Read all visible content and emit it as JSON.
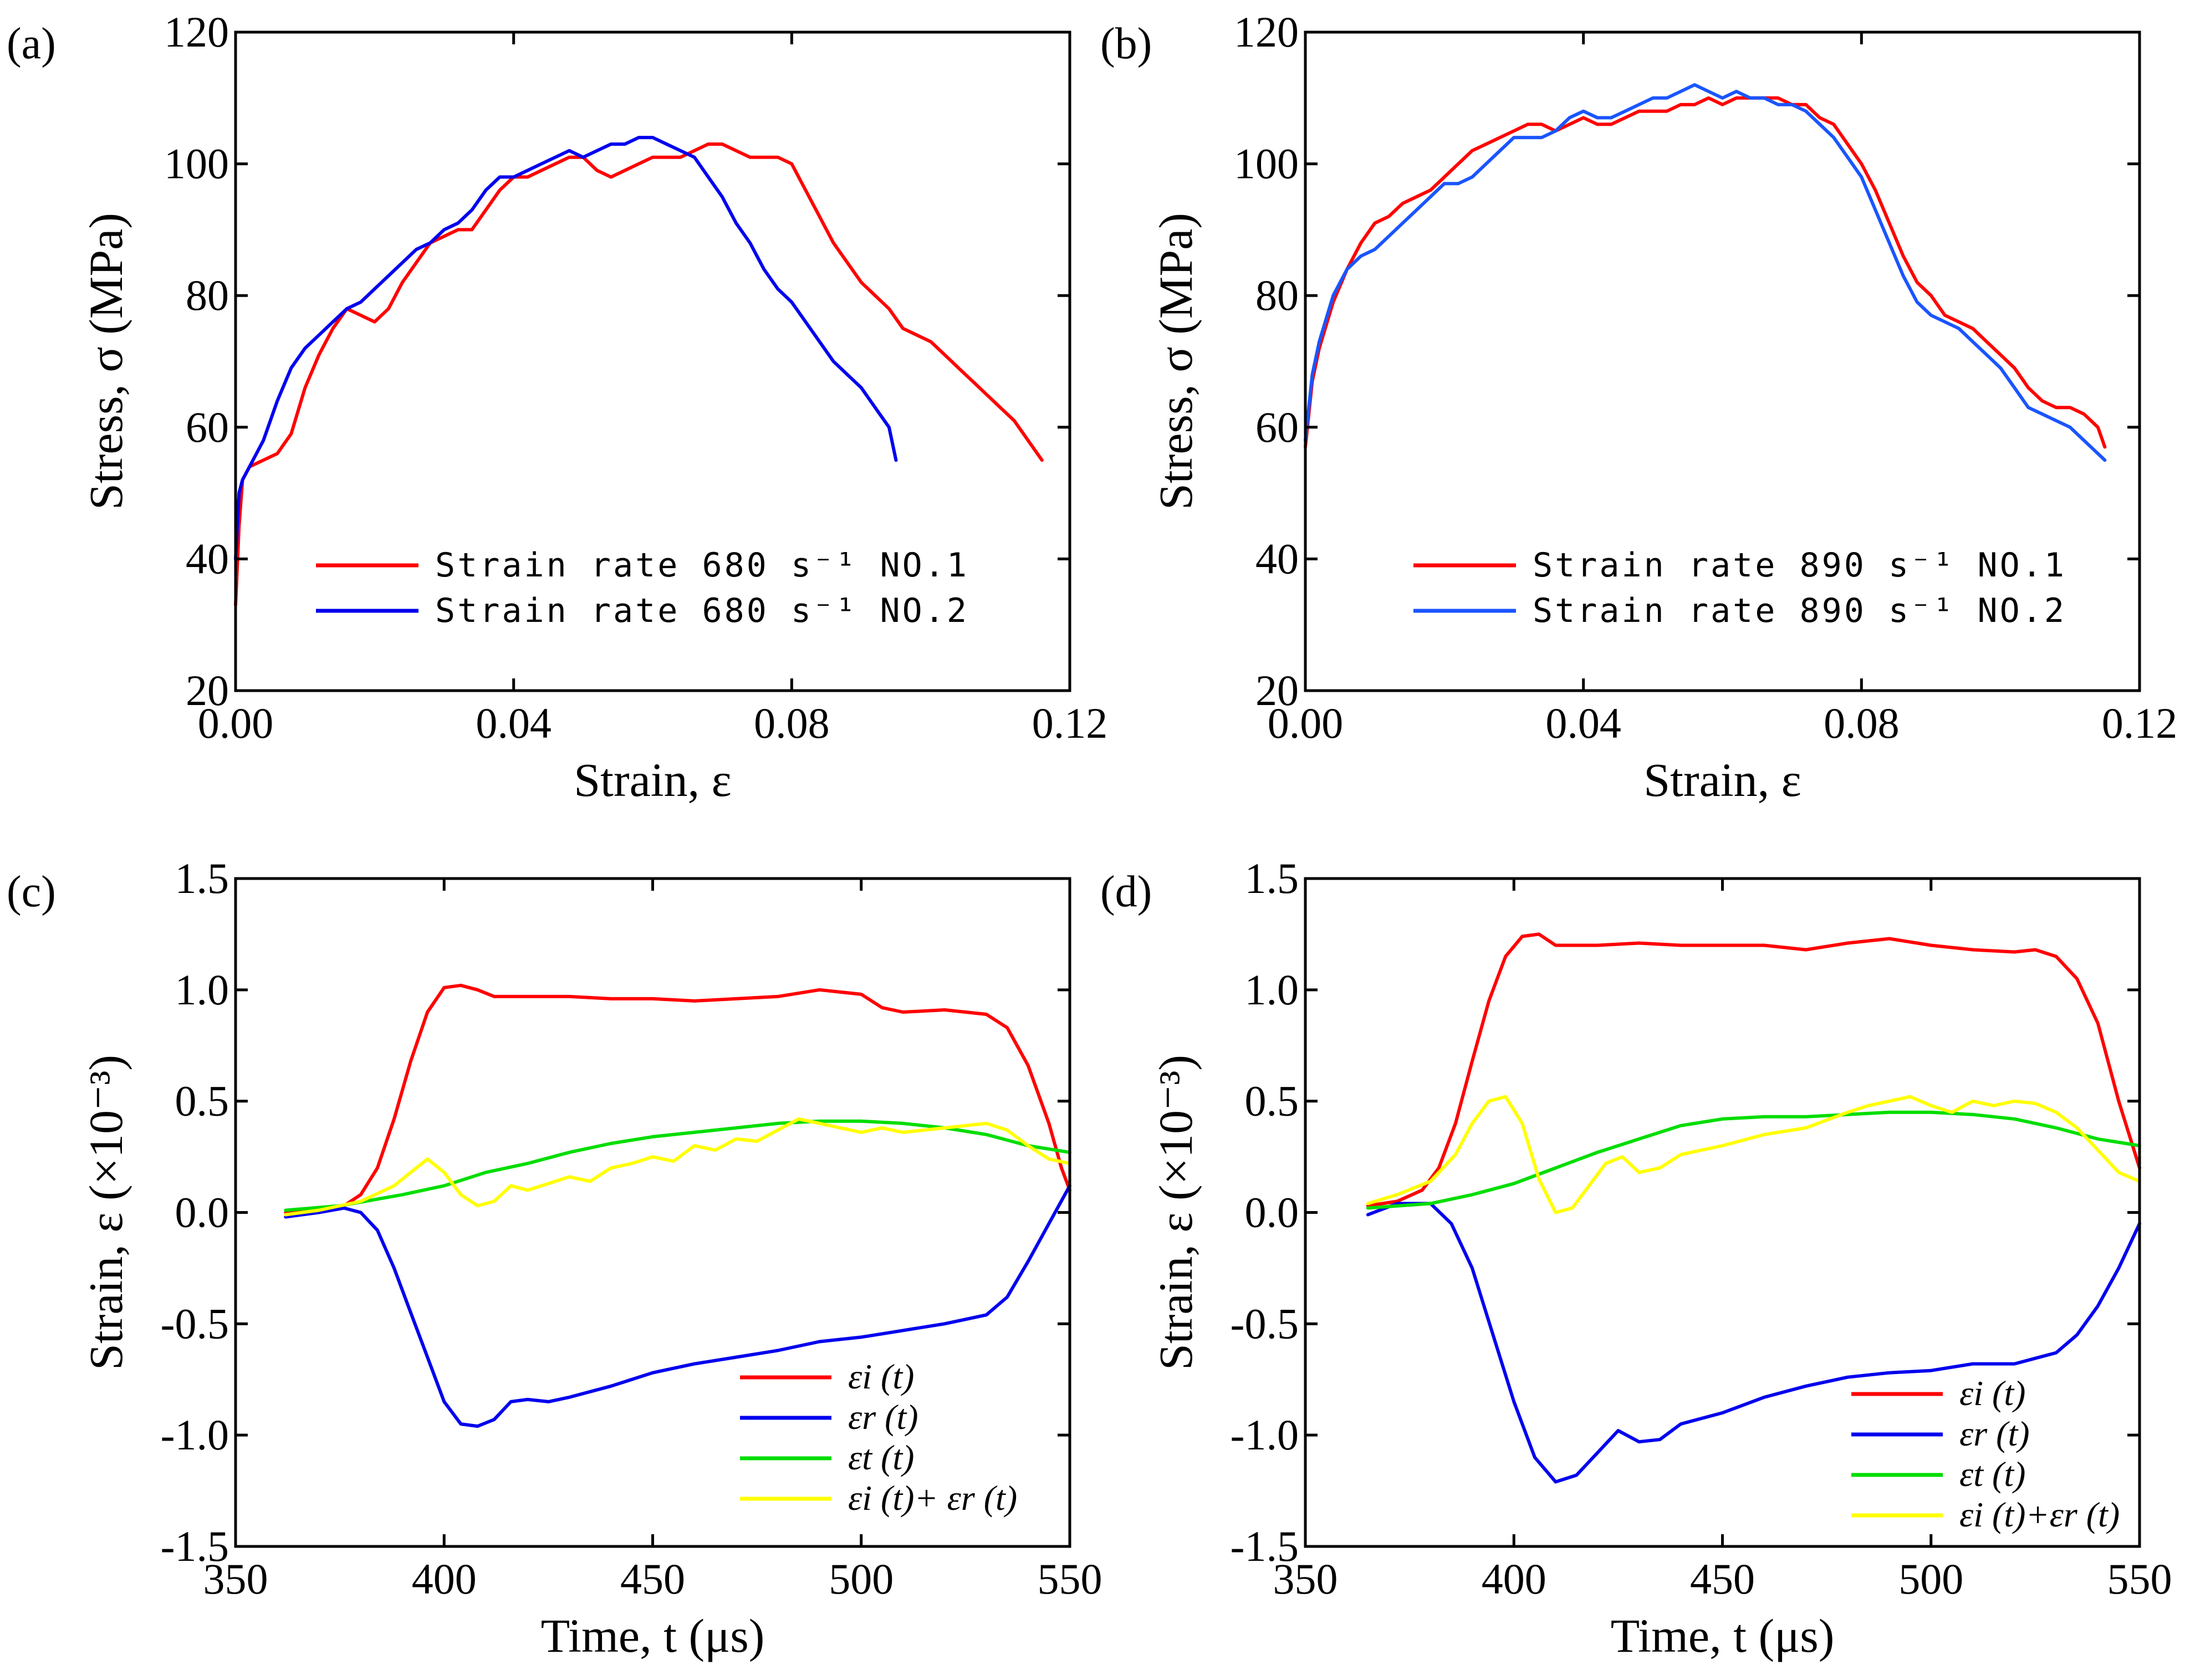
{
  "chart_data": [
    {
      "id": "a",
      "panel_label": "(a)",
      "type": "line",
      "xlabel": "Strain, ε",
      "ylabel": "Stress, σ (MPa)",
      "xlim": [
        0.0,
        0.12
      ],
      "ylim": [
        20,
        120
      ],
      "xticks": [
        "0.00",
        "0.04",
        "0.08",
        "0.12"
      ],
      "yticks": [
        "20",
        "40",
        "60",
        "80",
        "100",
        "120"
      ],
      "legend_position": "lower-center",
      "series": [
        {
          "name": "Strain rate 680 s⁻¹ NO.1",
          "color": "#ff0000",
          "x": [
            0.0,
            0.0005,
            0.001,
            0.002,
            0.004,
            0.006,
            0.008,
            0.01,
            0.012,
            0.014,
            0.016,
            0.018,
            0.02,
            0.022,
            0.024,
            0.026,
            0.028,
            0.03,
            0.032,
            0.034,
            0.036,
            0.038,
            0.04,
            0.042,
            0.044,
            0.046,
            0.048,
            0.05,
            0.052,
            0.054,
            0.056,
            0.058,
            0.06,
            0.062,
            0.064,
            0.066,
            0.068,
            0.07,
            0.072,
            0.074,
            0.076,
            0.078,
            0.08,
            0.082,
            0.084,
            0.086,
            0.088,
            0.09,
            0.092,
            0.094,
            0.096,
            0.098,
            0.1,
            0.102,
            0.104,
            0.106,
            0.108,
            0.11,
            0.112,
            0.114,
            0.116
          ],
          "y": [
            33,
            45,
            52,
            54,
            55,
            56,
            59,
            66,
            71,
            75,
            78,
            77,
            76,
            78,
            82,
            85,
            88,
            89,
            90,
            90,
            93,
            96,
            98,
            98,
            99,
            100,
            101,
            101,
            99,
            98,
            99,
            100,
            101,
            101,
            101,
            102,
            103,
            103,
            102,
            101,
            101,
            101,
            100,
            96,
            92,
            88,
            85,
            82,
            80,
            78,
            75,
            74,
            73,
            71,
            69,
            67,
            65,
            63,
            61,
            58,
            55
          ]
        },
        {
          "name": "Strain rate 680 s⁻¹ NO.2",
          "color": "#0000ee",
          "x": [
            0.0,
            0.0005,
            0.001,
            0.002,
            0.004,
            0.006,
            0.008,
            0.01,
            0.012,
            0.014,
            0.016,
            0.018,
            0.02,
            0.022,
            0.024,
            0.026,
            0.028,
            0.03,
            0.032,
            0.034,
            0.036,
            0.038,
            0.04,
            0.042,
            0.044,
            0.046,
            0.048,
            0.05,
            0.052,
            0.054,
            0.056,
            0.058,
            0.06,
            0.062,
            0.064,
            0.066,
            0.068,
            0.07,
            0.072,
            0.074,
            0.076,
            0.078,
            0.08,
            0.082,
            0.084,
            0.086,
            0.088,
            0.09,
            0.092,
            0.094,
            0.095
          ],
          "y": [
            40,
            50,
            52,
            54,
            58,
            64,
            69,
            72,
            74,
            76,
            78,
            79,
            81,
            83,
            85,
            87,
            88,
            90,
            91,
            93,
            96,
            98,
            98,
            99,
            100,
            101,
            102,
            101,
            102,
            103,
            103,
            104,
            104,
            103,
            102,
            101,
            98,
            95,
            91,
            88,
            84,
            81,
            79,
            76,
            73,
            70,
            68,
            66,
            63,
            60,
            55
          ]
        }
      ]
    },
    {
      "id": "b",
      "panel_label": "(b)",
      "type": "line",
      "xlabel": "Strain, ε",
      "ylabel": "Stress, σ (MPa)",
      "xlim": [
        0.0,
        0.12
      ],
      "ylim": [
        20,
        120
      ],
      "xticks": [
        "0.00",
        "0.04",
        "0.08",
        "0.12"
      ],
      "yticks": [
        "20",
        "40",
        "60",
        "80",
        "100",
        "120"
      ],
      "legend_position": "lower-center",
      "series": [
        {
          "name": "Strain rate 890 s⁻¹ NO.1",
          "color": "#ff0000",
          "x": [
            0.0,
            0.001,
            0.002,
            0.004,
            0.006,
            0.008,
            0.01,
            0.012,
            0.014,
            0.016,
            0.018,
            0.02,
            0.022,
            0.024,
            0.026,
            0.028,
            0.03,
            0.032,
            0.034,
            0.036,
            0.038,
            0.04,
            0.042,
            0.044,
            0.046,
            0.048,
            0.05,
            0.052,
            0.054,
            0.056,
            0.058,
            0.06,
            0.062,
            0.064,
            0.066,
            0.068,
            0.07,
            0.072,
            0.074,
            0.076,
            0.078,
            0.08,
            0.082,
            0.084,
            0.086,
            0.088,
            0.09,
            0.092,
            0.094,
            0.096,
            0.098,
            0.1,
            0.102,
            0.104,
            0.106,
            0.108,
            0.11,
            0.112,
            0.114,
            0.115
          ],
          "y": [
            57,
            67,
            72,
            79,
            84,
            88,
            91,
            92,
            94,
            95,
            96,
            98,
            100,
            102,
            103,
            104,
            105,
            106,
            106,
            105,
            106,
            107,
            106,
            106,
            107,
            108,
            108,
            108,
            109,
            109,
            110,
            109,
            110,
            110,
            110,
            110,
            109,
            109,
            107,
            106,
            103,
            100,
            96,
            91,
            86,
            82,
            80,
            77,
            76,
            75,
            73,
            71,
            69,
            66,
            64,
            63,
            63,
            62,
            60,
            57
          ]
        },
        {
          "name": "Strain rate 890 s⁻¹ NO.2",
          "color": "#1a55ff",
          "x": [
            0.0,
            0.001,
            0.002,
            0.004,
            0.006,
            0.008,
            0.01,
            0.012,
            0.014,
            0.016,
            0.018,
            0.02,
            0.022,
            0.024,
            0.026,
            0.028,
            0.03,
            0.032,
            0.034,
            0.036,
            0.038,
            0.04,
            0.042,
            0.044,
            0.046,
            0.048,
            0.05,
            0.052,
            0.054,
            0.056,
            0.058,
            0.06,
            0.062,
            0.064,
            0.066,
            0.068,
            0.07,
            0.072,
            0.074,
            0.076,
            0.078,
            0.08,
            0.082,
            0.084,
            0.086,
            0.088,
            0.09,
            0.092,
            0.094,
            0.096,
            0.098,
            0.1,
            0.102,
            0.104,
            0.106,
            0.108,
            0.11,
            0.112,
            0.114,
            0.115
          ],
          "y": [
            58,
            68,
            73,
            80,
            84,
            86,
            87,
            89,
            91,
            93,
            95,
            97,
            97,
            98,
            100,
            102,
            104,
            104,
            104,
            105,
            107,
            108,
            107,
            107,
            108,
            109,
            110,
            110,
            111,
            112,
            111,
            110,
            111,
            110,
            110,
            109,
            109,
            108,
            106,
            104,
            101,
            98,
            93,
            88,
            83,
            79,
            77,
            76,
            75,
            73,
            71,
            69,
            66,
            63,
            62,
            61,
            60,
            58,
            56,
            55
          ]
        }
      ]
    },
    {
      "id": "c",
      "panel_label": "(c)",
      "type": "line",
      "xlabel": "Time, t (μs)",
      "ylabel": "Strain, ε (×10⁻³)",
      "xlim": [
        350,
        550
      ],
      "ylim": [
        -1.5,
        1.5
      ],
      "xticks": [
        "350",
        "400",
        "450",
        "500",
        "550"
      ],
      "yticks": [
        "-1.5",
        "-1.0",
        "-0.5",
        "0.0",
        "0.5",
        "1.0",
        "1.5"
      ],
      "legend_position": "lower-right",
      "series": [
        {
          "name": "εi (t)",
          "color": "#ff0000",
          "x": [
            362,
            370,
            376,
            380,
            384,
            388,
            392,
            396,
            400,
            404,
            408,
            412,
            420,
            430,
            440,
            450,
            460,
            470,
            480,
            490,
            500,
            505,
            510,
            520,
            530,
            535,
            540,
            545,
            548,
            550
          ],
          "y": [
            0.0,
            0.01,
            0.03,
            0.08,
            0.2,
            0.42,
            0.68,
            0.9,
            1.01,
            1.02,
            1.0,
            0.97,
            0.97,
            0.97,
            0.96,
            0.96,
            0.95,
            0.96,
            0.97,
            1.0,
            0.98,
            0.92,
            0.9,
            0.91,
            0.89,
            0.83,
            0.66,
            0.4,
            0.2,
            0.1
          ]
        },
        {
          "name": "εr (t)",
          "color": "#0000ee",
          "x": [
            362,
            370,
            376,
            380,
            384,
            388,
            392,
            396,
            400,
            404,
            408,
            412,
            416,
            420,
            425,
            430,
            440,
            450,
            460,
            470,
            480,
            490,
            500,
            510,
            520,
            530,
            535,
            540,
            545,
            550
          ],
          "y": [
            -0.02,
            0.0,
            0.02,
            0.0,
            -0.08,
            -0.25,
            -0.45,
            -0.65,
            -0.85,
            -0.95,
            -0.96,
            -0.93,
            -0.85,
            -0.84,
            -0.85,
            -0.83,
            -0.78,
            -0.72,
            -0.68,
            -0.65,
            -0.62,
            -0.58,
            -0.56,
            -0.53,
            -0.5,
            -0.46,
            -0.38,
            -0.22,
            -0.05,
            0.12
          ]
        },
        {
          "name": "εt (t)",
          "color": "#00dd00",
          "x": [
            362,
            375,
            390,
            400,
            410,
            420,
            430,
            440,
            450,
            460,
            470,
            480,
            490,
            500,
            510,
            520,
            530,
            540,
            550
          ],
          "y": [
            0.01,
            0.03,
            0.08,
            0.12,
            0.18,
            0.22,
            0.27,
            0.31,
            0.34,
            0.36,
            0.38,
            0.4,
            0.41,
            0.41,
            0.4,
            0.38,
            0.35,
            0.3,
            0.27
          ]
        },
        {
          "name": "εi (t)+ εr (t)",
          "color": "#ffff00",
          "x": [
            362,
            370,
            380,
            388,
            392,
            396,
            400,
            404,
            408,
            412,
            416,
            420,
            425,
            430,
            435,
            440,
            445,
            450,
            455,
            460,
            465,
            470,
            475,
            480,
            485,
            490,
            495,
            500,
            505,
            510,
            520,
            530,
            535,
            540,
            545,
            550
          ],
          "y": [
            -0.01,
            0.01,
            0.05,
            0.12,
            0.18,
            0.24,
            0.18,
            0.08,
            0.03,
            0.05,
            0.12,
            0.1,
            0.13,
            0.16,
            0.14,
            0.2,
            0.22,
            0.25,
            0.23,
            0.3,
            0.28,
            0.33,
            0.32,
            0.37,
            0.42,
            0.4,
            0.38,
            0.36,
            0.38,
            0.36,
            0.38,
            0.4,
            0.37,
            0.3,
            0.24,
            0.22
          ]
        }
      ]
    },
    {
      "id": "d",
      "panel_label": "(d)",
      "type": "line",
      "xlabel": "Time, t (μs)",
      "ylabel": "Strain, ε (×10⁻³)",
      "xlim": [
        350,
        550
      ],
      "ylim": [
        -1.5,
        1.5
      ],
      "xticks": [
        "350",
        "400",
        "450",
        "500",
        "550"
      ],
      "yticks": [
        "-1.5",
        "-1.0",
        "-0.5",
        "0.0",
        "0.5",
        "1.0",
        "1.5"
      ],
      "legend_position": "lower-right",
      "series": [
        {
          "name": "εi (t)",
          "color": "#ff0000",
          "x": [
            365,
            372,
            378,
            382,
            386,
            390,
            394,
            398,
            402,
            406,
            410,
            420,
            430,
            440,
            450,
            460,
            470,
            480,
            490,
            500,
            510,
            520,
            525,
            530,
            535,
            540,
            545,
            550
          ],
          "y": [
            0.03,
            0.05,
            0.1,
            0.2,
            0.4,
            0.68,
            0.95,
            1.15,
            1.24,
            1.25,
            1.2,
            1.2,
            1.21,
            1.2,
            1.2,
            1.2,
            1.18,
            1.21,
            1.23,
            1.2,
            1.18,
            1.17,
            1.18,
            1.15,
            1.05,
            0.85,
            0.5,
            0.2
          ]
        },
        {
          "name": "εr (t)",
          "color": "#0000ee",
          "x": [
            365,
            372,
            380,
            385,
            390,
            395,
            400,
            405,
            410,
            415,
            420,
            425,
            430,
            435,
            440,
            450,
            460,
            470,
            480,
            490,
            500,
            510,
            520,
            530,
            535,
            540,
            545,
            550
          ],
          "y": [
            -0.01,
            0.04,
            0.04,
            -0.05,
            -0.25,
            -0.55,
            -0.85,
            -1.1,
            -1.21,
            -1.18,
            -1.08,
            -0.98,
            -1.03,
            -1.02,
            -0.95,
            -0.9,
            -0.83,
            -0.78,
            -0.74,
            -0.72,
            -0.71,
            -0.68,
            -0.68,
            -0.63,
            -0.55,
            -0.42,
            -0.25,
            -0.05
          ]
        },
        {
          "name": "εt (t)",
          "color": "#00dd00",
          "x": [
            365,
            380,
            390,
            400,
            410,
            420,
            430,
            440,
            450,
            460,
            470,
            480,
            490,
            500,
            510,
            520,
            530,
            540,
            550
          ],
          "y": [
            0.02,
            0.04,
            0.08,
            0.13,
            0.2,
            0.27,
            0.33,
            0.39,
            0.42,
            0.43,
            0.43,
            0.44,
            0.45,
            0.45,
            0.44,
            0.42,
            0.38,
            0.33,
            0.3
          ]
        },
        {
          "name": "εi (t)+εr (t)",
          "color": "#ffff00",
          "x": [
            365,
            372,
            380,
            386,
            390,
            394,
            398,
            402,
            406,
            410,
            414,
            418,
            422,
            426,
            430,
            435,
            440,
            445,
            450,
            460,
            470,
            480,
            485,
            490,
            495,
            500,
            505,
            510,
            515,
            520,
            525,
            530,
            535,
            540,
            545,
            550
          ],
          "y": [
            0.04,
            0.08,
            0.14,
            0.26,
            0.4,
            0.5,
            0.52,
            0.4,
            0.15,
            0.0,
            0.02,
            0.12,
            0.22,
            0.25,
            0.18,
            0.2,
            0.26,
            0.28,
            0.3,
            0.35,
            0.38,
            0.45,
            0.48,
            0.5,
            0.52,
            0.48,
            0.45,
            0.5,
            0.48,
            0.5,
            0.49,
            0.45,
            0.38,
            0.28,
            0.18,
            0.14
          ]
        }
      ]
    }
  ]
}
